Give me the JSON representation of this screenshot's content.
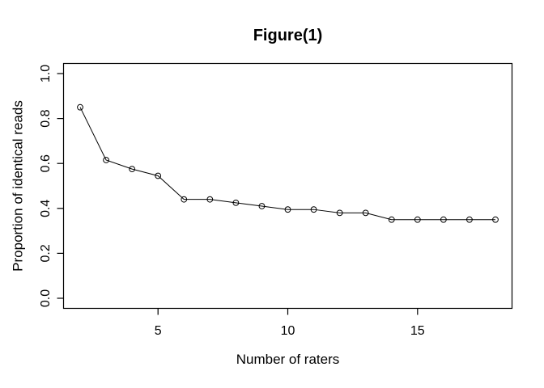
{
  "chart_data": {
    "type": "line",
    "title": "Figure(1)",
    "xlabel": "Number of raters",
    "ylabel": "Proportion of identical reads",
    "x": [
      2,
      3,
      4,
      5,
      6,
      7,
      8,
      9,
      10,
      11,
      12,
      13,
      14,
      15,
      16,
      17,
      18
    ],
    "values": [
      0.85,
      0.615,
      0.575,
      0.545,
      0.44,
      0.44,
      0.425,
      0.41,
      0.395,
      0.395,
      0.38,
      0.38,
      0.35,
      0.35,
      0.35,
      0.35,
      0.35
    ],
    "xlim": [
      1.36,
      18.64
    ],
    "ylim": [
      -0.045,
      1.045
    ],
    "x_ticks": [
      5,
      10,
      15
    ],
    "x_tick_labels": [
      "5",
      "10",
      "15"
    ],
    "y_ticks": [
      0,
      0.2,
      0.4,
      0.6,
      0.8,
      1
    ],
    "y_tick_labels": [
      "0.0",
      "0.2",
      "0.4",
      "0.6",
      "0.8",
      "1.0"
    ],
    "grid": false,
    "legend": null,
    "marker": "open-circle",
    "colors": {
      "line": "#000000",
      "marker_stroke": "#000000",
      "text": "#000000",
      "box": "#000000",
      "background": "#ffffff"
    }
  }
}
